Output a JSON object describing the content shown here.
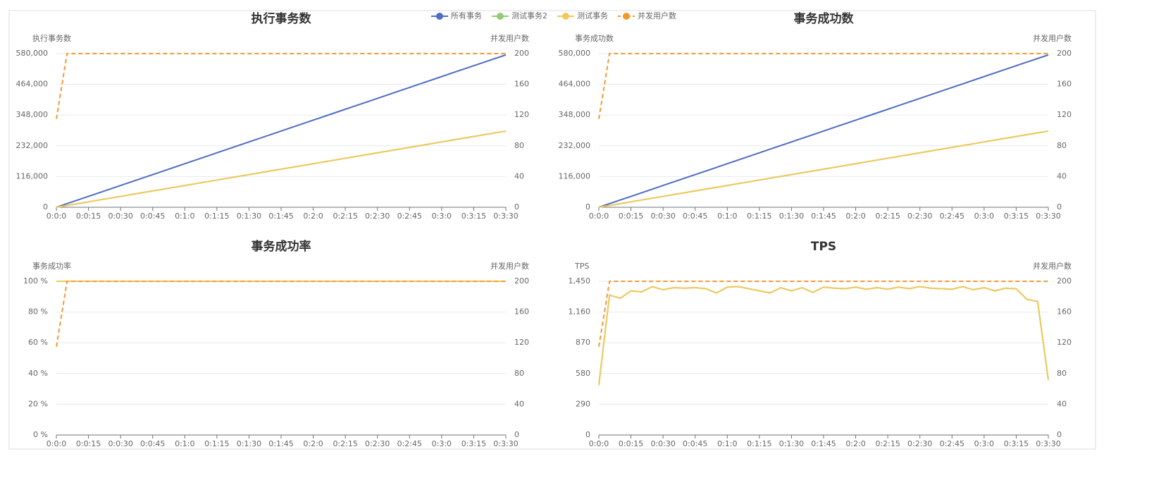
{
  "chart_data": [
    {
      "type": "line",
      "title": "执行事务数",
      "y_label": "执行事务数",
      "y2_label": "并发用户数",
      "x": [
        0,
        5,
        10,
        20,
        30,
        40,
        50,
        60,
        70,
        80,
        90,
        100,
        110,
        120,
        130,
        140,
        150,
        160,
        170,
        180,
        190,
        200,
        210
      ],
      "xlim": [
        0,
        210
      ],
      "xticks": [
        {
          "value": 0,
          "label": "0:0:0"
        },
        {
          "value": 15,
          "label": "0:0:15"
        },
        {
          "value": 30,
          "label": "0:0:30"
        },
        {
          "value": 45,
          "label": "0:0:45"
        },
        {
          "value": 60,
          "label": "0:1:0"
        },
        {
          "value": 75,
          "label": "0:1:15"
        },
        {
          "value": 90,
          "label": "0:1:30"
        },
        {
          "value": 105,
          "label": "0:1:45"
        },
        {
          "value": 120,
          "label": "0:2:0"
        },
        {
          "value": 135,
          "label": "0:2:15"
        },
        {
          "value": 150,
          "label": "0:2:30"
        },
        {
          "value": 165,
          "label": "0:2:45"
        },
        {
          "value": 180,
          "label": "0:3:0"
        },
        {
          "value": 195,
          "label": "0:3:15"
        },
        {
          "value": 210,
          "label": "0:3:30"
        }
      ],
      "ylim": [
        0,
        580000
      ],
      "yticks": [
        0,
        {
          "value": 116000,
          "label": "116,000"
        },
        {
          "value": 232000,
          "label": "232,000"
        },
        {
          "value": 348000,
          "label": "348,000"
        },
        {
          "value": 464000,
          "label": "464,000"
        },
        {
          "value": 580000,
          "label": "580,000"
        }
      ],
      "y2lim": [
        0,
        200
      ],
      "y2ticks": [
        0,
        40,
        80,
        120,
        160,
        200
      ],
      "grid": true,
      "series": [
        {
          "name": "所有事务",
          "color": "#4e6cc4",
          "values": [
            0,
            13700,
            27400,
            54800,
            82200,
            109600,
            137000,
            164400,
            191800,
            219200,
            246600,
            274000,
            301400,
            328800,
            356200,
            383600,
            411000,
            438400,
            465800,
            493200,
            520600,
            548000,
            575000
          ]
        },
        {
          "name": "测试事务2",
          "color": "#91cc75",
          "values": [
            0,
            6850,
            13700,
            27400,
            41100,
            54800,
            68500,
            82200,
            95900,
            109600,
            123300,
            137000,
            150700,
            164400,
            178100,
            191800,
            205500,
            219200,
            232900,
            246600,
            260300,
            274000,
            287500
          ]
        },
        {
          "name": "测试事务",
          "color": "#f2c85b",
          "values": [
            0,
            6850,
            13700,
            27400,
            41100,
            54800,
            68500,
            82200,
            95900,
            109600,
            123300,
            137000,
            150700,
            164400,
            178100,
            191800,
            205500,
            219200,
            232900,
            246600,
            260300,
            274000,
            287500
          ]
        },
        {
          "name": "并发用户数",
          "color": "#f39a2e",
          "axis": "y2",
          "style": "dashed",
          "values": [
            115,
            200,
            200,
            200,
            200,
            200,
            200,
            200,
            200,
            200,
            200,
            200,
            200,
            200,
            200,
            200,
            200,
            200,
            200,
            200,
            200,
            200,
            200
          ]
        }
      ]
    },
    {
      "type": "line",
      "title": "事务成功数",
      "y_label": "事务成功数",
      "y2_label": "并发用户数",
      "x": [
        0,
        5,
        10,
        20,
        30,
        40,
        50,
        60,
        70,
        80,
        90,
        100,
        110,
        120,
        130,
        140,
        150,
        160,
        170,
        180,
        190,
        200,
        210
      ],
      "xlim": [
        0,
        210
      ],
      "xticks": [
        {
          "value": 0,
          "label": "0:0:0"
        },
        {
          "value": 15,
          "label": "0:0:15"
        },
        {
          "value": 30,
          "label": "0:0:30"
        },
        {
          "value": 45,
          "label": "0:0:45"
        },
        {
          "value": 60,
          "label": "0:1:0"
        },
        {
          "value": 75,
          "label": "0:1:15"
        },
        {
          "value": 90,
          "label": "0:1:30"
        },
        {
          "value": 105,
          "label": "0:1:45"
        },
        {
          "value": 120,
          "label": "0:2:0"
        },
        {
          "value": 135,
          "label": "0:2:15"
        },
        {
          "value": 150,
          "label": "0:2:30"
        },
        {
          "value": 165,
          "label": "0:2:45"
        },
        {
          "value": 180,
          "label": "0:3:0"
        },
        {
          "value": 195,
          "label": "0:3:15"
        },
        {
          "value": 210,
          "label": "0:3:30"
        }
      ],
      "ylim": [
        0,
        580000
      ],
      "yticks": [
        0,
        {
          "value": 116000,
          "label": "116,000"
        },
        {
          "value": 232000,
          "label": "232,000"
        },
        {
          "value": 348000,
          "label": "348,000"
        },
        {
          "value": 464000,
          "label": "464,000"
        },
        {
          "value": 580000,
          "label": "580,000"
        }
      ],
      "y2lim": [
        0,
        200
      ],
      "y2ticks": [
        0,
        40,
        80,
        120,
        160,
        200
      ],
      "grid": true,
      "series": [
        {
          "color": "#4e6cc4",
          "values": [
            0,
            13700,
            27400,
            54800,
            82200,
            109600,
            137000,
            164400,
            191800,
            219200,
            246600,
            274000,
            301400,
            328800,
            356200,
            383600,
            411000,
            438400,
            465800,
            493200,
            520600,
            548000,
            575000
          ]
        },
        {
          "color": "#91cc75",
          "values": [
            0,
            6850,
            13700,
            27400,
            41100,
            54800,
            68500,
            82200,
            95900,
            109600,
            123300,
            137000,
            150700,
            164400,
            178100,
            191800,
            205500,
            219200,
            232900,
            246600,
            260300,
            274000,
            287500
          ]
        },
        {
          "color": "#f2c85b",
          "values": [
            0,
            6850,
            13700,
            27400,
            41100,
            54800,
            68500,
            82200,
            95900,
            109600,
            123300,
            137000,
            150700,
            164400,
            178100,
            191800,
            205500,
            219200,
            232900,
            246600,
            260300,
            274000,
            287500
          ]
        },
        {
          "color": "#f39a2e",
          "axis": "y2",
          "style": "dashed",
          "values": [
            115,
            200,
            200,
            200,
            200,
            200,
            200,
            200,
            200,
            200,
            200,
            200,
            200,
            200,
            200,
            200,
            200,
            200,
            200,
            200,
            200,
            200,
            200
          ]
        }
      ]
    },
    {
      "type": "line",
      "title": "事务成功率",
      "y_label": "事务成功率",
      "y2_label": "并发用户数",
      "x": [
        0,
        5,
        10,
        20,
        30,
        40,
        50,
        60,
        70,
        80,
        90,
        100,
        110,
        120,
        130,
        140,
        150,
        160,
        170,
        180,
        190,
        200,
        210
      ],
      "xlim": [
        0,
        210
      ],
      "xticks": [
        {
          "value": 0,
          "label": "0:0:0"
        },
        {
          "value": 15,
          "label": "0:0:15"
        },
        {
          "value": 30,
          "label": "0:0:30"
        },
        {
          "value": 45,
          "label": "0:0:45"
        },
        {
          "value": 60,
          "label": "0:1:0"
        },
        {
          "value": 75,
          "label": "0:1:15"
        },
        {
          "value": 90,
          "label": "0:1:30"
        },
        {
          "value": 105,
          "label": "0:1:45"
        },
        {
          "value": 120,
          "label": "0:2:0"
        },
        {
          "value": 135,
          "label": "0:2:15"
        },
        {
          "value": 150,
          "label": "0:2:30"
        },
        {
          "value": 165,
          "label": "0:2:45"
        },
        {
          "value": 180,
          "label": "0:3:0"
        },
        {
          "value": 195,
          "label": "0:3:15"
        },
        {
          "value": 210,
          "label": "0:3:30"
        }
      ],
      "ylim": [
        0,
        100
      ],
      "yticks": [
        {
          "value": 0,
          "label": "0 %"
        },
        {
          "value": 20,
          "label": "20 %"
        },
        {
          "value": 40,
          "label": "40 %"
        },
        {
          "value": 60,
          "label": "60 %"
        },
        {
          "value": 80,
          "label": "80 %"
        },
        {
          "value": 100,
          "label": "100 %"
        }
      ],
      "y2lim": [
        0,
        200
      ],
      "y2ticks": [
        0,
        40,
        80,
        120,
        160,
        200
      ],
      "grid": true,
      "series": [
        {
          "color": "#4e6cc4",
          "values": [
            100,
            100,
            100,
            100,
            100,
            100,
            100,
            100,
            100,
            100,
            100,
            100,
            100,
            100,
            100,
            100,
            100,
            100,
            100,
            100,
            100,
            100,
            100
          ]
        },
        {
          "color": "#91cc75",
          "values": [
            100,
            100,
            100,
            100,
            100,
            100,
            100,
            100,
            100,
            100,
            100,
            100,
            100,
            100,
            100,
            100,
            100,
            100,
            100,
            100,
            100,
            100,
            100
          ]
        },
        {
          "color": "#f2c85b",
          "values": [
            100,
            100,
            100,
            100,
            100,
            100,
            100,
            100,
            100,
            100,
            100,
            100,
            100,
            100,
            100,
            100,
            100,
            100,
            100,
            100,
            100,
            100,
            100
          ]
        },
        {
          "color": "#f39a2e",
          "axis": "y2",
          "style": "dashed",
          "values": [
            115,
            200,
            200,
            200,
            200,
            200,
            200,
            200,
            200,
            200,
            200,
            200,
            200,
            200,
            200,
            200,
            200,
            200,
            200,
            200,
            200,
            200,
            200
          ]
        }
      ]
    },
    {
      "type": "line",
      "title": "TPS",
      "y_label": "TPS",
      "y2_label": "并发用户数",
      "x": [
        0,
        5,
        10,
        15,
        20,
        25,
        30,
        35,
        40,
        45,
        50,
        55,
        60,
        65,
        70,
        75,
        80,
        85,
        90,
        95,
        100,
        105,
        110,
        115,
        120,
        125,
        130,
        135,
        140,
        145,
        150,
        155,
        160,
        165,
        170,
        175,
        180,
        185,
        190,
        195,
        200,
        205,
        210
      ],
      "xlim": [
        0,
        210
      ],
      "xticks": [
        {
          "value": 0,
          "label": "0:0:0"
        },
        {
          "value": 15,
          "label": "0:0:15"
        },
        {
          "value": 30,
          "label": "0:0:30"
        },
        {
          "value": 45,
          "label": "0:0:45"
        },
        {
          "value": 60,
          "label": "0:1:0"
        },
        {
          "value": 75,
          "label": "0:1:15"
        },
        {
          "value": 90,
          "label": "0:1:30"
        },
        {
          "value": 105,
          "label": "0:1:45"
        },
        {
          "value": 120,
          "label": "0:2:0"
        },
        {
          "value": 135,
          "label": "0:2:15"
        },
        {
          "value": 150,
          "label": "0:2:30"
        },
        {
          "value": 165,
          "label": "0:2:45"
        },
        {
          "value": 180,
          "label": "0:3:0"
        },
        {
          "value": 195,
          "label": "0:3:15"
        },
        {
          "value": 210,
          "label": "0:3:30"
        }
      ],
      "ylim": [
        0,
        1450
      ],
      "yticks": [
        0,
        290,
        580,
        870,
        {
          "value": 1160,
          "label": "1,160"
        },
        {
          "value": 1450,
          "label": "1,450"
        }
      ],
      "y2lim": [
        0,
        200
      ],
      "y2ticks": [
        0,
        40,
        80,
        120,
        160,
        200
      ],
      "grid": true,
      "series": [
        {
          "color": "#91cc75",
          "values": [
            470,
            1320,
            1290,
            1360,
            1350,
            1400,
            1370,
            1390,
            1385,
            1390,
            1380,
            1340,
            1395,
            1400,
            1380,
            1360,
            1340,
            1390,
            1360,
            1390,
            1345,
            1395,
            1385,
            1380,
            1395,
            1375,
            1390,
            1375,
            1395,
            1380,
            1400,
            1385,
            1380,
            1375,
            1400,
            1370,
            1390,
            1360,
            1385,
            1380,
            1280,
            1260,
            520
          ]
        },
        {
          "color": "#f2c85b",
          "values": [
            470,
            1320,
            1290,
            1360,
            1350,
            1400,
            1370,
            1390,
            1385,
            1390,
            1380,
            1340,
            1395,
            1400,
            1380,
            1360,
            1340,
            1390,
            1360,
            1390,
            1345,
            1395,
            1385,
            1380,
            1395,
            1375,
            1390,
            1375,
            1395,
            1380,
            1400,
            1385,
            1380,
            1375,
            1400,
            1370,
            1390,
            1360,
            1385,
            1380,
            1280,
            1260,
            520
          ]
        },
        {
          "color": "#f39a2e",
          "axis": "y2",
          "style": "dashed",
          "values": [
            115,
            200,
            200,
            200,
            200,
            200,
            200,
            200,
            200,
            200,
            200,
            200,
            200,
            200,
            200,
            200,
            200,
            200,
            200,
            200,
            200,
            200,
            200,
            200,
            200,
            200,
            200,
            200,
            200,
            200,
            200,
            200,
            200,
            200,
            200,
            200,
            200,
            200,
            200,
            200,
            200,
            200,
            200
          ]
        }
      ]
    }
  ]
}
